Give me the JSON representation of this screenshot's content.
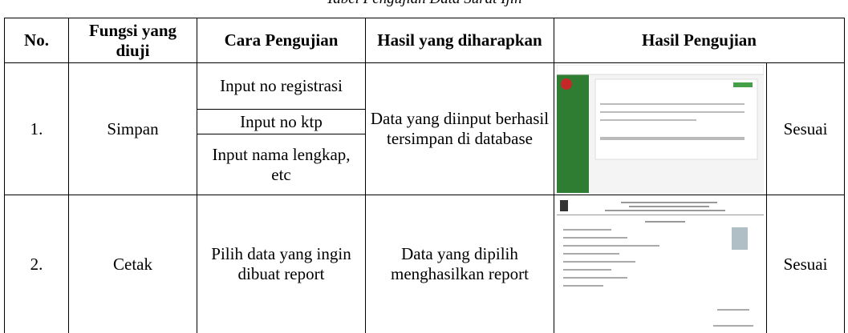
{
  "title": "Tabel Pengujian Data Surat Ijin",
  "table": {
    "headers": [
      "No.",
      "Fungsi yang diuji",
      "Cara Pengujian",
      "Hasil yang diharapkan",
      "Hasil Pengujian"
    ],
    "rows": [
      {
        "no": "1.",
        "function": "Simpan",
        "methods": [
          "Input no registrasi",
          "Input no ktp",
          "Input nama lengkap, etc"
        ],
        "expected": "Data yang diinput berhasil tersimpan di database",
        "result": "Sesuai"
      },
      {
        "no": "2.",
        "function": "Cetak",
        "methods": [
          "Pilih data yang ingin dibuat report"
        ],
        "expected": "Data yang dipilih menghasilkan report",
        "result": "Sesuai"
      }
    ]
  }
}
